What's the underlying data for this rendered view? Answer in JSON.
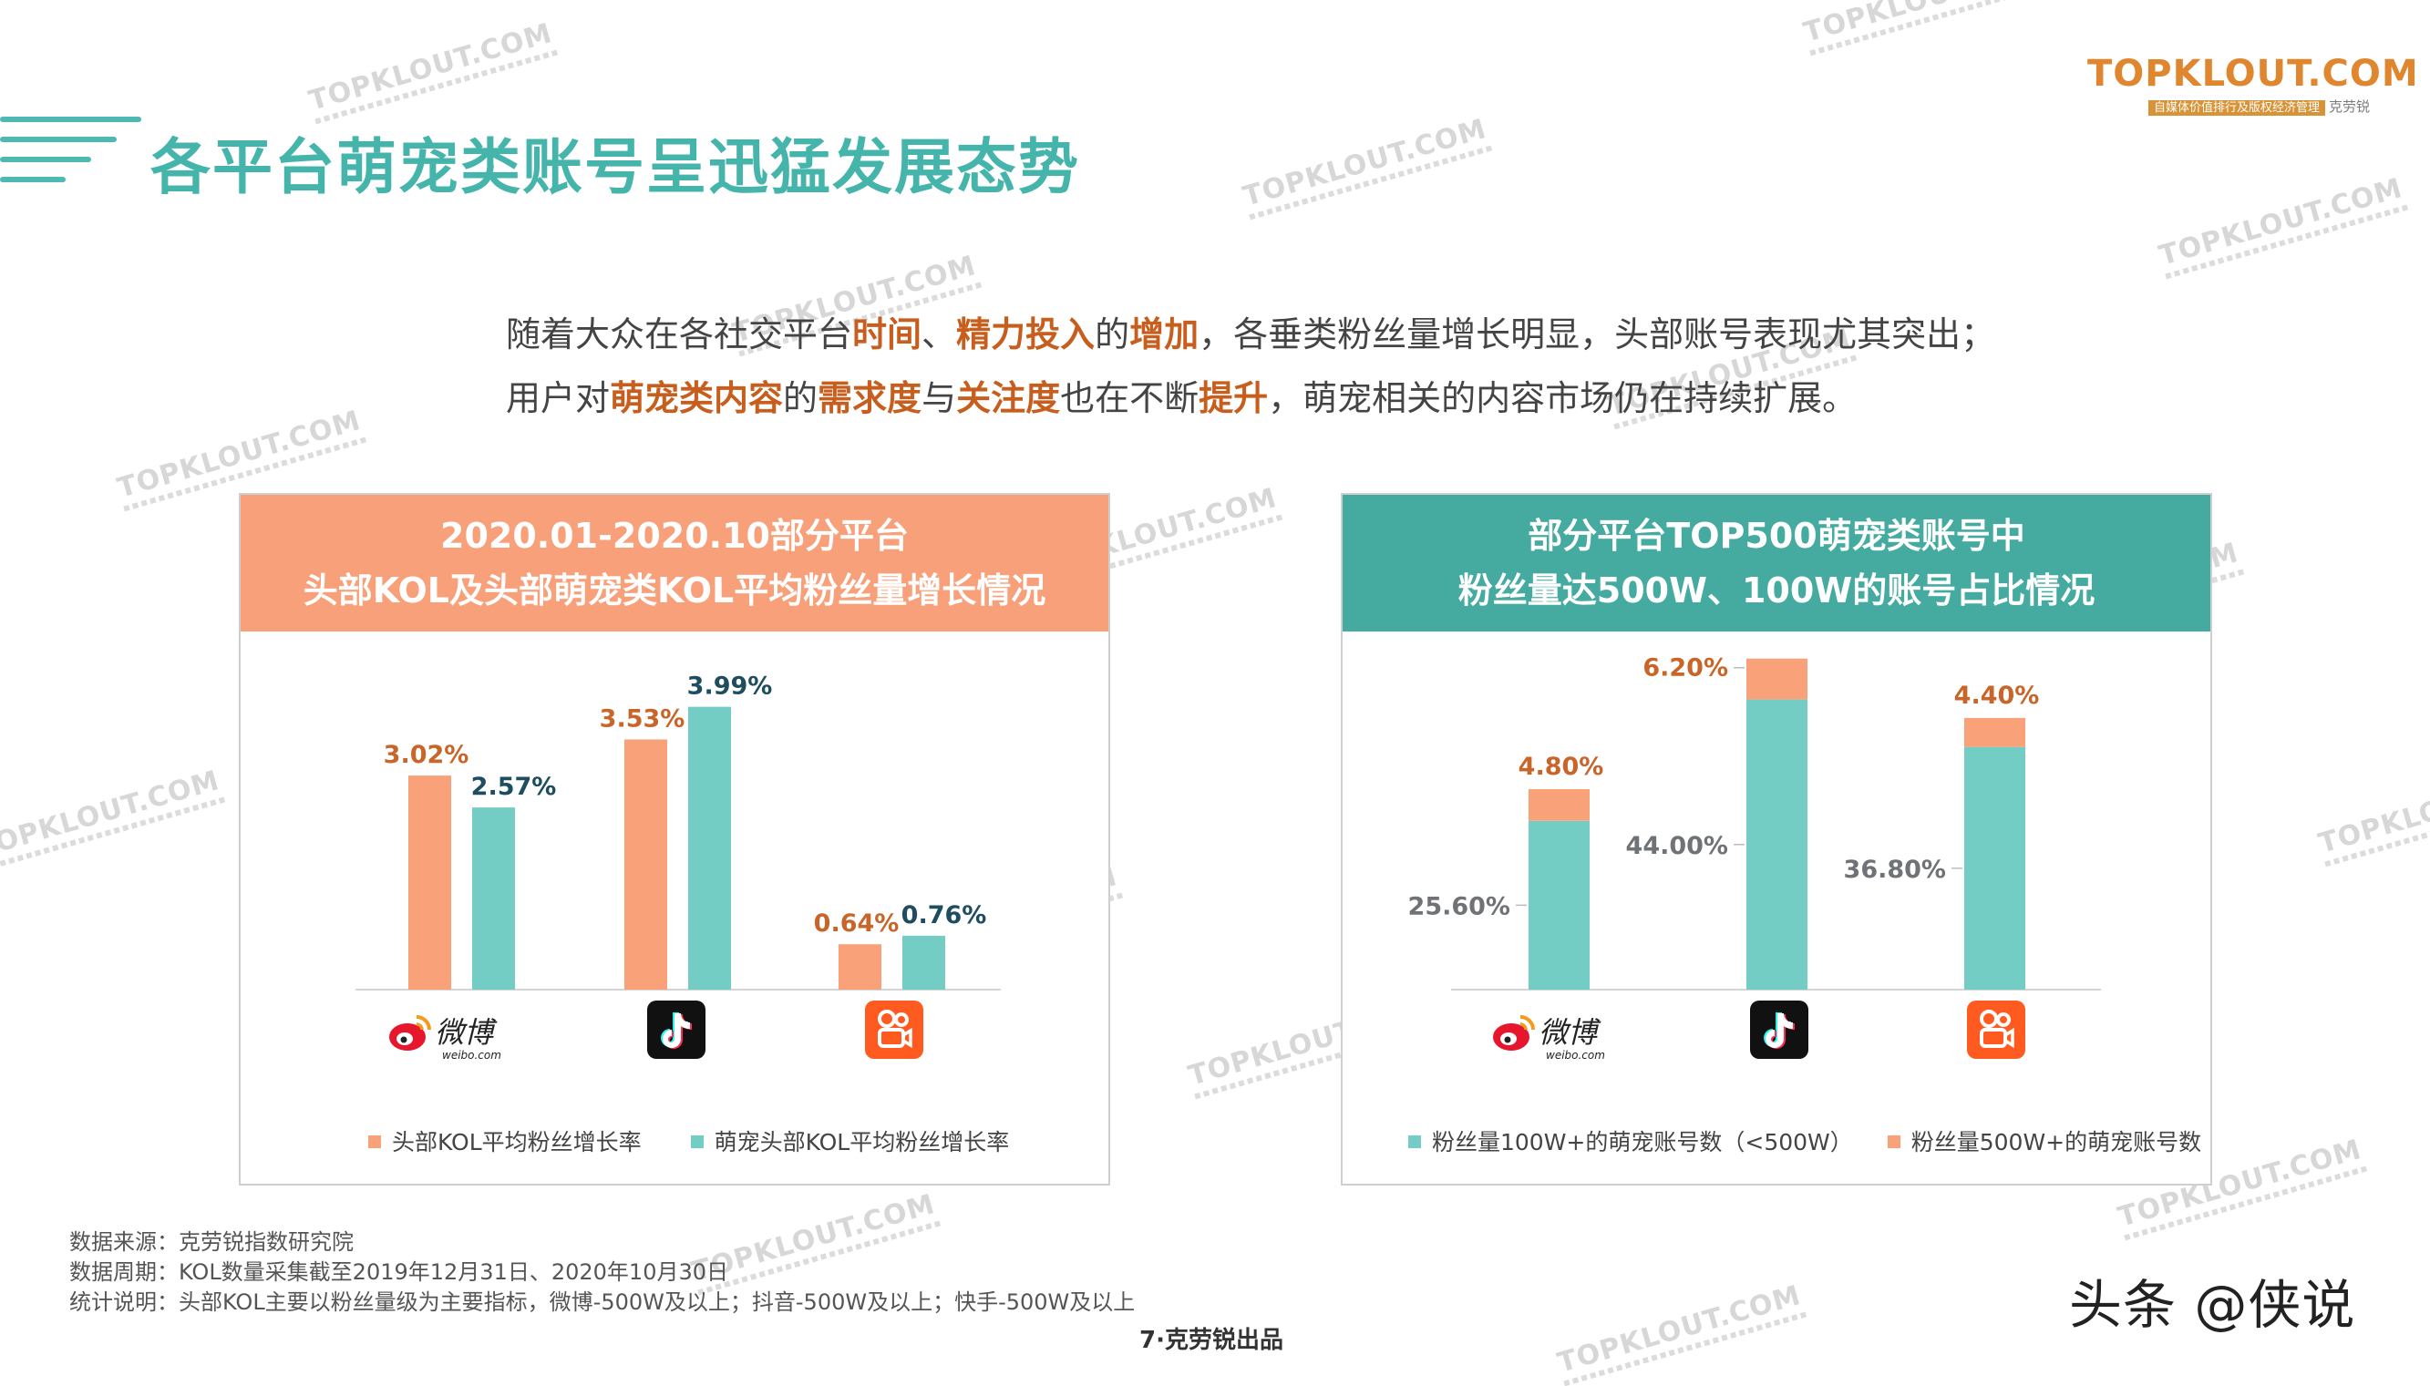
{
  "page_title": "各平台萌宠类账号呈迅猛发展态势",
  "logo": {
    "main": "TOPKLOUT.COM",
    "tagline": "自媒体价值排行及版权经济管理",
    "brand": "克劳锐"
  },
  "watermark": "TOPKLOUT.COM",
  "intro": {
    "line1": [
      {
        "text": "随着大众在各社交平台",
        "hl": false
      },
      {
        "text": "时间",
        "hl": true
      },
      {
        "text": "、",
        "hl": false
      },
      {
        "text": "精力投入",
        "hl": true
      },
      {
        "text": "的",
        "hl": false
      },
      {
        "text": "增加",
        "hl": true
      },
      {
        "text": "，各垂类粉丝量增长明显，头部账号表现尤其突出；",
        "hl": false
      }
    ],
    "line2": [
      {
        "text": "用户对",
        "hl": false
      },
      {
        "text": "萌宠类内容",
        "hl": true
      },
      {
        "text": "的",
        "hl": false
      },
      {
        "text": "需求度",
        "hl": true
      },
      {
        "text": "与",
        "hl": false
      },
      {
        "text": "关注度",
        "hl": true
      },
      {
        "text": "也在不断",
        "hl": false
      },
      {
        "text": "提升",
        "hl": true
      },
      {
        "text": "，萌宠相关的内容市场仍在持续扩展。",
        "hl": false
      }
    ]
  },
  "left_panel": {
    "title_line1": "2020.01-2020.10部分平台",
    "title_line2": "头部KOL及头部萌宠类KOL平均粉丝量增长情况"
  },
  "right_panel": {
    "title_line1": "部分平台TOP500萌宠类账号中",
    "title_line2": "粉丝量达500W、100W的账号占比情况"
  },
  "platforms": {
    "weibo": {
      "name": "微博",
      "sub": "weibo.com"
    },
    "douyin": {
      "name": "抖音"
    },
    "kuaishou": {
      "name": "快手"
    }
  },
  "colors": {
    "orange": "#f9a27a",
    "teal": "#74cdc4",
    "orange_label": "#c8662a",
    "teal_label": "#1e4d60",
    "grey_label": "#6f7277",
    "orange_head": "#f8a07a",
    "teal_head": "#45aaa0"
  },
  "chart_data": [
    {
      "type": "bar",
      "categories": [
        "微博",
        "抖音",
        "快手"
      ],
      "series": [
        {
          "name": "头部KOL平均粉丝增长率",
          "values": [
            3.02,
            3.53,
            0.64
          ],
          "labels": [
            "3.02%",
            "3.53%",
            "0.64%"
          ]
        },
        {
          "name": "萌宠头部KOL平均粉丝增长率",
          "values": [
            2.57,
            3.99,
            0.76
          ],
          "labels": [
            "2.57%",
            "3.99%",
            "0.76%"
          ]
        }
      ],
      "ylim": [
        0,
        4.5
      ],
      "legend_position": "bottom",
      "grid": false
    },
    {
      "type": "bar",
      "stacked": true,
      "categories": [
        "微博",
        "抖音",
        "快手"
      ],
      "series": [
        {
          "name": "粉丝量100W+的萌宠账号数（<500W）",
          "values": [
            25.6,
            44.0,
            36.8
          ],
          "labels": [
            "25.60%",
            "44.00%",
            "36.80%"
          ]
        },
        {
          "name": "粉丝量500W+的萌宠账号数",
          "values": [
            4.8,
            6.2,
            4.4
          ],
          "labels": [
            "4.80%",
            "6.20%",
            "4.40%"
          ]
        }
      ],
      "ylim": [
        0,
        55
      ],
      "legend_position": "bottom",
      "grid": false
    }
  ],
  "footer": {
    "source": "数据来源：克劳锐指数研究院",
    "period": "数据周期：KOL数量采集截至2019年12月31日、2020年10月30日",
    "note": "统计说明：头部KOL主要以粉丝量级为主要指标，微博-500W及以上；抖音-500W及以上；快手-500W及以上",
    "page": "7·克劳锐出品"
  },
  "credit": "头条 @侠说"
}
